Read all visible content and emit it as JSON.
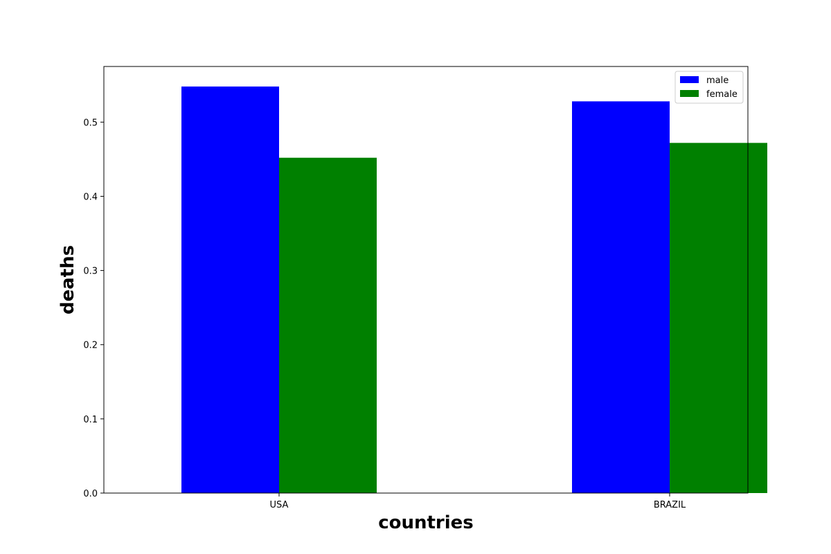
{
  "chart_data": {
    "type": "bar",
    "title": "",
    "xlabel": "countries",
    "ylabel": "deaths",
    "categories": [
      "USA",
      "BRAZIL"
    ],
    "series": [
      {
        "name": "male",
        "values": [
          0.548,
          0.528
        ],
        "color": "#0000ff"
      },
      {
        "name": "female",
        "values": [
          0.452,
          0.472
        ],
        "color": "#008000"
      }
    ],
    "ylim": [
      0,
      0.575
    ],
    "yticks": [
      "0.0",
      "0.1",
      "0.2",
      "0.3",
      "0.4",
      "0.5"
    ],
    "grid": false,
    "legend_position": "top-right"
  }
}
